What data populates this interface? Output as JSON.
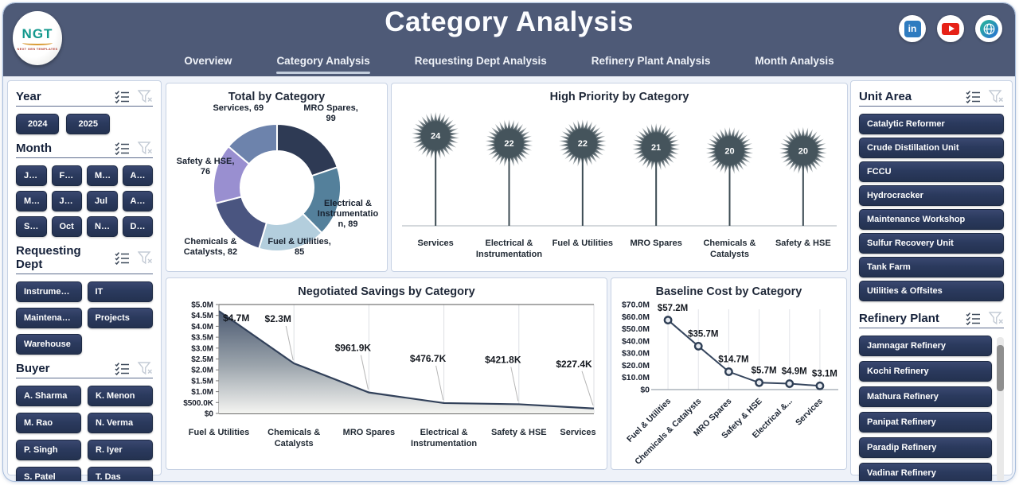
{
  "header": {
    "title": "Category Analysis",
    "logo": {
      "text": "NGT",
      "subtext": "NEXT GEN TEMPLATES"
    },
    "nav": {
      "items": [
        "Overview",
        "Category Analysis",
        "Requesting Dept Analysis",
        "Refinery Plant Analysis",
        "Month Analysis"
      ],
      "active": "Category Analysis"
    },
    "social": [
      {
        "icon": "linkedin-icon",
        "glyph": "in"
      },
      {
        "icon": "youtube-icon"
      },
      {
        "icon": "website-icon"
      }
    ]
  },
  "filters": {
    "year": {
      "label": "Year",
      "options": [
        "2024",
        "2025"
      ]
    },
    "month": {
      "label": "Month",
      "options": [
        "Jan",
        "Feb",
        "Mar",
        "Apr",
        "May",
        "Jun",
        "Jul",
        "Aug",
        "Sep",
        "Oct",
        "Nov",
        "Dec"
      ]
    },
    "requesting_dept": {
      "label": "Requesting Dept",
      "options": [
        "Instrumentati...",
        "IT",
        "Maintenance",
        "Projects",
        "Warehouse"
      ]
    },
    "buyer": {
      "label": "Buyer",
      "options": [
        "A. Sharma",
        "K. Menon",
        "M. Rao",
        "N. Verma",
        "P. Singh",
        "R. Iyer",
        "S. Patel",
        "T. Das"
      ]
    },
    "unit_area": {
      "label": "Unit Area",
      "options": [
        "Catalytic Reformer",
        "Crude Distillation Unit",
        "FCCU",
        "Hydrocracker",
        "Maintenance Workshop",
        "Sulfur Recovery Unit",
        "Tank Farm",
        "Utilities & Offsites"
      ]
    },
    "refinery_plant": {
      "label": "Refinery Plant",
      "options": [
        "Jamnagar Refinery",
        "Kochi Refinery",
        "Mathura Refinery",
        "Panipat Refinery",
        "Paradip Refinery",
        "Vadinar Refinery"
      ]
    }
  },
  "chart_data": [
    {
      "id": "total_by_category",
      "type": "pie",
      "subtype": "donut",
      "title": "Total by Category",
      "categories": [
        "MRO Spares",
        "Electrical & Instrumentation",
        "Fuel & Utilities",
        "Chemicals & Catalysts",
        "Safety & HSE",
        "Services"
      ],
      "values": [
        99,
        89,
        85,
        82,
        76,
        69
      ],
      "colors": [
        "#2e3a54",
        "#54809b",
        "#b3cedd",
        "#4a5580",
        "#998fd0",
        "#6d83ac"
      ],
      "label_format": "{category}, {value}",
      "legend_position": "none"
    },
    {
      "id": "high_priority_by_category",
      "type": "line",
      "subtype": "lollipop-starburst",
      "title": "High Priority by Category",
      "categories": [
        "Services",
        "Electrical & Instrumentation",
        "Fuel & Utilities",
        "MRO Spares",
        "Chemicals & Catalysts",
        "Safety & HSE"
      ],
      "values": [
        24,
        22,
        22,
        21,
        20,
        20
      ],
      "marker_color": "#45545c",
      "ylim": [
        0,
        25
      ],
      "grid": false
    },
    {
      "id": "negotiated_savings_by_category",
      "type": "area",
      "title": "Negotiated Savings by Category",
      "categories": [
        "Fuel & Utilities",
        "Chemicals & Catalysts",
        "MRO Spares",
        "Electrical & Instrumentation",
        "Safety & HSE",
        "Services"
      ],
      "values": [
        4700000,
        2300000,
        961900,
        476700,
        421800,
        227400
      ],
      "data_labels": [
        "$4.7M",
        "$2.3M",
        "$961.9K",
        "$476.7K",
        "$421.8K",
        "$227.4K"
      ],
      "yticks": [
        "$0",
        "$500.0K",
        "$1.0M",
        "$1.5M",
        "$2.0M",
        "$2.5M",
        "$3.0M",
        "$3.5M",
        "$4.0M",
        "$4.5M",
        "$5.0M"
      ],
      "ylim": [
        0,
        5000000
      ],
      "line_color": "#32415a",
      "gradient_top": "#41506a",
      "gradient_bottom": "#f4f4f1",
      "grid": true
    },
    {
      "id": "baseline_cost_by_category",
      "type": "line",
      "title": "Baseline Cost by Category",
      "categories": [
        "Fuel & Utilities",
        "Chemicals & Catalysts",
        "MRO Spares",
        "Safety & HSE",
        "Electrical &...",
        "Services"
      ],
      "values": [
        57200000,
        35700000,
        14700000,
        5700000,
        4900000,
        3100000
      ],
      "data_labels": [
        "$57.2M",
        "$35.7M",
        "$14.7M",
        "$5.7M",
        "$4.9M",
        "$3.1M"
      ],
      "yticks": [
        "$0",
        "$10.0M",
        "$20.0M",
        "$30.0M",
        "$40.0M",
        "$50.0M",
        "$60.0M",
        "$70.0M"
      ],
      "ylim": [
        0,
        70000000
      ],
      "line_color": "#36465e",
      "marker_fill": "#e6eaf0",
      "grid": true
    }
  ]
}
